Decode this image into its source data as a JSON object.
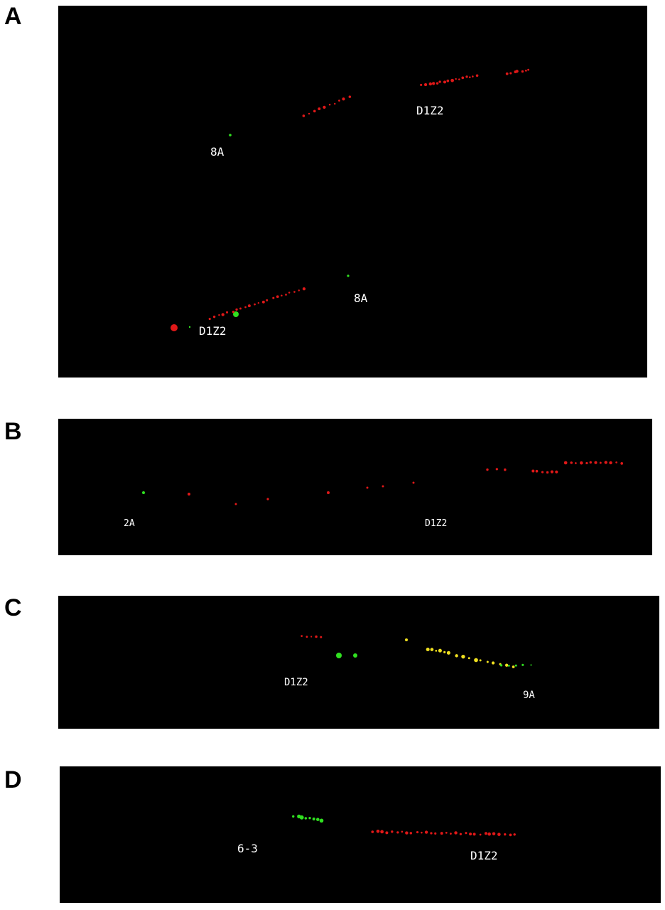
{
  "panels": [
    {
      "letter": "A",
      "labels": [
        "D1Z2",
        "8A",
        "8A",
        "D1Z2"
      ]
    },
    {
      "letter": "B",
      "labels": [
        "2A",
        "D1Z2"
      ]
    },
    {
      "letter": "C",
      "labels": [
        "D1Z2",
        "9A"
      ]
    },
    {
      "letter": "D",
      "labels": [
        "6-3",
        "D1Z2"
      ]
    }
  ],
  "colors": {
    "background": "#000000",
    "probe_red": "#e01818",
    "probe_green": "#30e020",
    "overlap_yellow": "#f0e020"
  }
}
